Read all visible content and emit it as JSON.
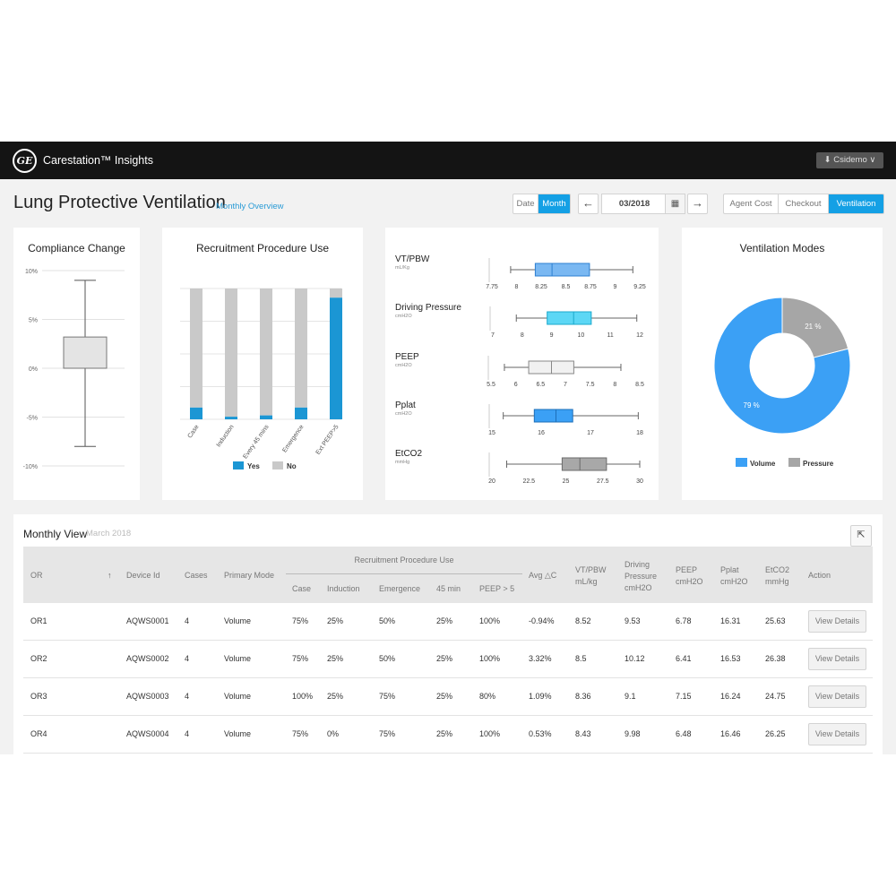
{
  "app": {
    "title": "Carestation™ Insights",
    "logo_text": "GE",
    "user": "Csidemo"
  },
  "page": {
    "title": "Lung Protective Ventilation",
    "subtitle": "Monthly Overview"
  },
  "controls": {
    "period_toggle": [
      {
        "label": "Date",
        "active": false
      },
      {
        "label": "Month",
        "active": true
      }
    ],
    "month_value": "03/2018",
    "view_tabs": [
      {
        "label": "Agent Cost",
        "active": false
      },
      {
        "label": "Checkout",
        "active": false
      },
      {
        "label": "Ventilation",
        "active": true
      }
    ]
  },
  "colors": {
    "accent": "#14a0e5",
    "bar_yes": "#1b96d4",
    "bar_no": "#c9c9c9",
    "volume": "#3ba0f5",
    "pressure": "#a6a6a6"
  },
  "chart_data": [
    {
      "type": "boxplot",
      "title": "Compliance Change",
      "ytick_labels": [
        "10%",
        "5%",
        "0%",
        "-5%",
        "-10%"
      ],
      "ylim": [
        -10,
        10
      ],
      "box": {
        "min": -8,
        "q1": 0,
        "q3": 3.2,
        "max": 9
      }
    },
    {
      "type": "bar",
      "stacked": true,
      "title": "Recruitment Procedure Use",
      "categories": [
        "Case",
        "Induction",
        "Every 45 mins",
        "Emergence",
        "Ext PEEP>5"
      ],
      "ylim": [
        0,
        100
      ],
      "series": [
        {
          "name": "Yes",
          "values": [
            9,
            2,
            3,
            9,
            93
          ]
        },
        {
          "name": "No",
          "values": [
            91,
            98,
            97,
            91,
            7
          ]
        }
      ],
      "legend": "bottom"
    },
    {
      "type": "boxplot",
      "title": "",
      "rows": [
        {
          "label": "VT/PBW",
          "unit": "mL/Kg",
          "ticks": [
            "7.75",
            "8",
            "8.25",
            "8.5",
            "8.75",
            "9",
            "9.25"
          ],
          "tick_values": [
            7.75,
            8,
            8.25,
            8.5,
            8.75,
            9,
            9.25
          ],
          "range": [
            7.75,
            9.25
          ],
          "min": 7.94,
          "q1": 8.19,
          "median": 8.36,
          "q3": 8.74,
          "max": 9.18,
          "color": "#7ab8f2",
          "stroke": "#2d7fd1"
        },
        {
          "label": "Driving Pressure",
          "unit": "cmH2O",
          "ticks": [
            "7",
            "8",
            "9",
            "10",
            "11",
            "12"
          ],
          "tick_values": [
            7,
            8,
            9,
            10,
            11,
            12
          ],
          "range": [
            7,
            12
          ],
          "min": 7.8,
          "q1": 8.85,
          "median": 9.75,
          "q3": 10.35,
          "max": 11.9,
          "color": "#5cd7f5",
          "stroke": "#1ba9cc"
        },
        {
          "label": "PEEP",
          "unit": "cmH2O",
          "ticks": [
            "5.5",
            "6",
            "6.5",
            "7",
            "7.5",
            "8",
            "8.5"
          ],
          "tick_values": [
            5.5,
            6,
            6.5,
            7,
            7.5,
            8,
            8.5
          ],
          "range": [
            5.5,
            8.5
          ],
          "min": 5.77,
          "q1": 6.26,
          "median": 6.72,
          "q3": 7.17,
          "max": 8.12,
          "color": "#f1f1f1",
          "stroke": "#888888"
        },
        {
          "label": "Pplat",
          "unit": "cmH2O",
          "ticks": [
            "15",
            "16",
            "17",
            "18"
          ],
          "tick_values": [
            15,
            16,
            17,
            18
          ],
          "range": [
            15,
            18
          ],
          "min": 15.23,
          "q1": 15.86,
          "median": 16.3,
          "q3": 16.64,
          "max": 17.97,
          "color": "#3ba0f5",
          "stroke": "#1e6fb8"
        },
        {
          "label": "EtCO2",
          "unit": "mmHg",
          "ticks": [
            "20",
            "22.5",
            "25",
            "27.5",
            "30"
          ],
          "tick_values": [
            20,
            22.5,
            25,
            27.5,
            30
          ],
          "range": [
            20,
            30
          ],
          "min": 21.0,
          "q1": 24.75,
          "median": 25.95,
          "q3": 27.75,
          "max": 30.0,
          "color": "#a8a8a8",
          "stroke": "#6b6b6b"
        }
      ]
    },
    {
      "type": "pie",
      "donut": true,
      "title": "Ventilation Modes",
      "series": [
        {
          "name": "Volume",
          "value": 79,
          "label": "79 %"
        },
        {
          "name": "Pressure",
          "value": 21,
          "label": "21 %"
        }
      ],
      "legend": "bottom"
    }
  ],
  "table": {
    "title": "Monthly View",
    "subtitle": "March 2018",
    "group_header": "Recruitment Procedure Use",
    "headers": {
      "or": "OR",
      "device": "Device Id",
      "cases": "Cases",
      "mode": "Primary Mode",
      "case": "Case",
      "induction": "Induction",
      "emergence": "Emergence",
      "m45": "45 min",
      "peep5": "PEEP > 5",
      "avg": "Avg △C",
      "vt": "VT/PBW mL/kg",
      "dp": "Driving Pressure cmH2O",
      "peep": "PEEP cmH2O",
      "pplat": "Pplat cmH2O",
      "etco2": "EtCO2 mmHg",
      "action": "Action"
    },
    "rows": [
      {
        "or": "OR1",
        "device": "AQWS0001",
        "cases": "4",
        "mode": "Volume",
        "case": "75%",
        "induction": "25%",
        "emergence": "50%",
        "m45": "25%",
        "peep5": "100%",
        "avg": "-0.94%",
        "vt": "8.52",
        "dp": "9.53",
        "peep": "6.78",
        "pplat": "16.31",
        "etco2": "25.63",
        "action": "View Details"
      },
      {
        "or": "OR2",
        "device": "AQWS0002",
        "cases": "4",
        "mode": "Volume",
        "case": "75%",
        "induction": "25%",
        "emergence": "50%",
        "m45": "25%",
        "peep5": "100%",
        "avg": "3.32%",
        "vt": "8.5",
        "dp": "10.12",
        "peep": "6.41",
        "pplat": "16.53",
        "etco2": "26.38",
        "action": "View Details"
      },
      {
        "or": "OR3",
        "device": "AQWS0003",
        "cases": "4",
        "mode": "Volume",
        "case": "100%",
        "induction": "25%",
        "emergence": "75%",
        "m45": "25%",
        "peep5": "80%",
        "avg": "1.09%",
        "vt": "8.36",
        "dp": "9.1",
        "peep": "7.15",
        "pplat": "16.24",
        "etco2": "24.75",
        "action": "View Details"
      },
      {
        "or": "OR4",
        "device": "AQWS0004",
        "cases": "4",
        "mode": "Volume",
        "case": "75%",
        "induction": "0%",
        "emergence": "75%",
        "m45": "25%",
        "peep5": "100%",
        "avg": "0.53%",
        "vt": "8.43",
        "dp": "9.98",
        "peep": "6.48",
        "pplat": "16.46",
        "etco2": "26.25",
        "action": "View Details"
      }
    ]
  }
}
